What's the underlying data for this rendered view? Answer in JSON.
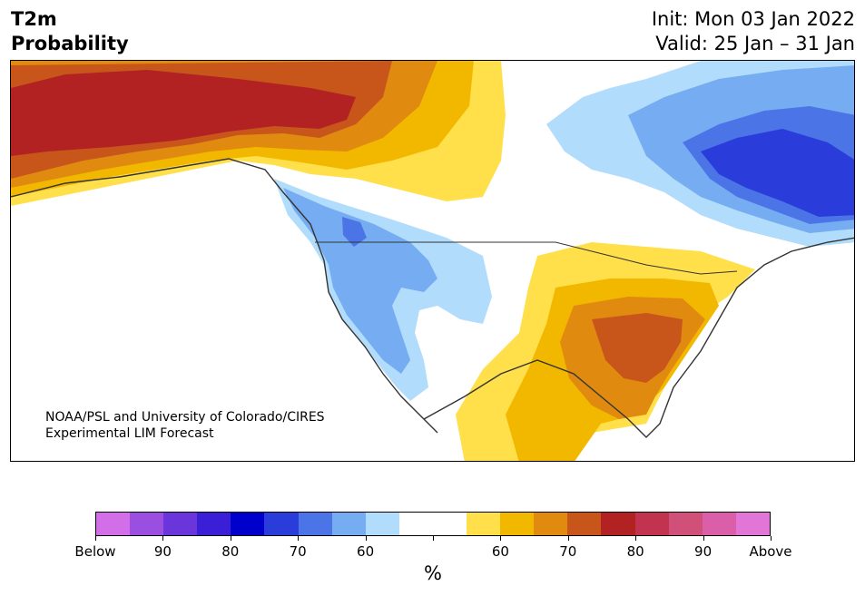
{
  "header": {
    "title_line1": "T2m",
    "title_line2": "Probability",
    "init": "Init: Mon 03 Jan 2022",
    "valid": "Valid: 25 Jan – 31 Jan"
  },
  "credit": {
    "line1": "NOAA/PSL and University of Colorado/CIRES",
    "line2": "Experimental LIM Forecast"
  },
  "colorbar": {
    "unit": "%",
    "colors": [
      "#d26ee8",
      "#9a4fe0",
      "#6a35db",
      "#3a1fd6",
      "#0000cc",
      "#2a3ddb",
      "#4b74e6",
      "#76adf2",
      "#b1dcfb",
      "#ffffff",
      "#ffffff",
      "#ffe04a",
      "#f2b800",
      "#e08a10",
      "#c8561a",
      "#b22222",
      "#c23350",
      "#d0507a",
      "#da5ea8",
      "#e276d6"
    ],
    "labels": [
      "Below",
      "90",
      "80",
      "70",
      "60",
      "60",
      "70",
      "80",
      "90",
      "Above"
    ]
  },
  "map_colors": {
    "cold_light": "#b1dcfb",
    "cold_mid": "#76adf2",
    "cold_strong": "#4b74e6",
    "cold_deep": "#2a3ddb",
    "warm_light": "#ffe04a",
    "warm_mid": "#f2b800",
    "warm_orange": "#e08a10",
    "warm_dark": "#c8561a",
    "warm_red": "#b22222",
    "warm_pink": "#c23350"
  }
}
